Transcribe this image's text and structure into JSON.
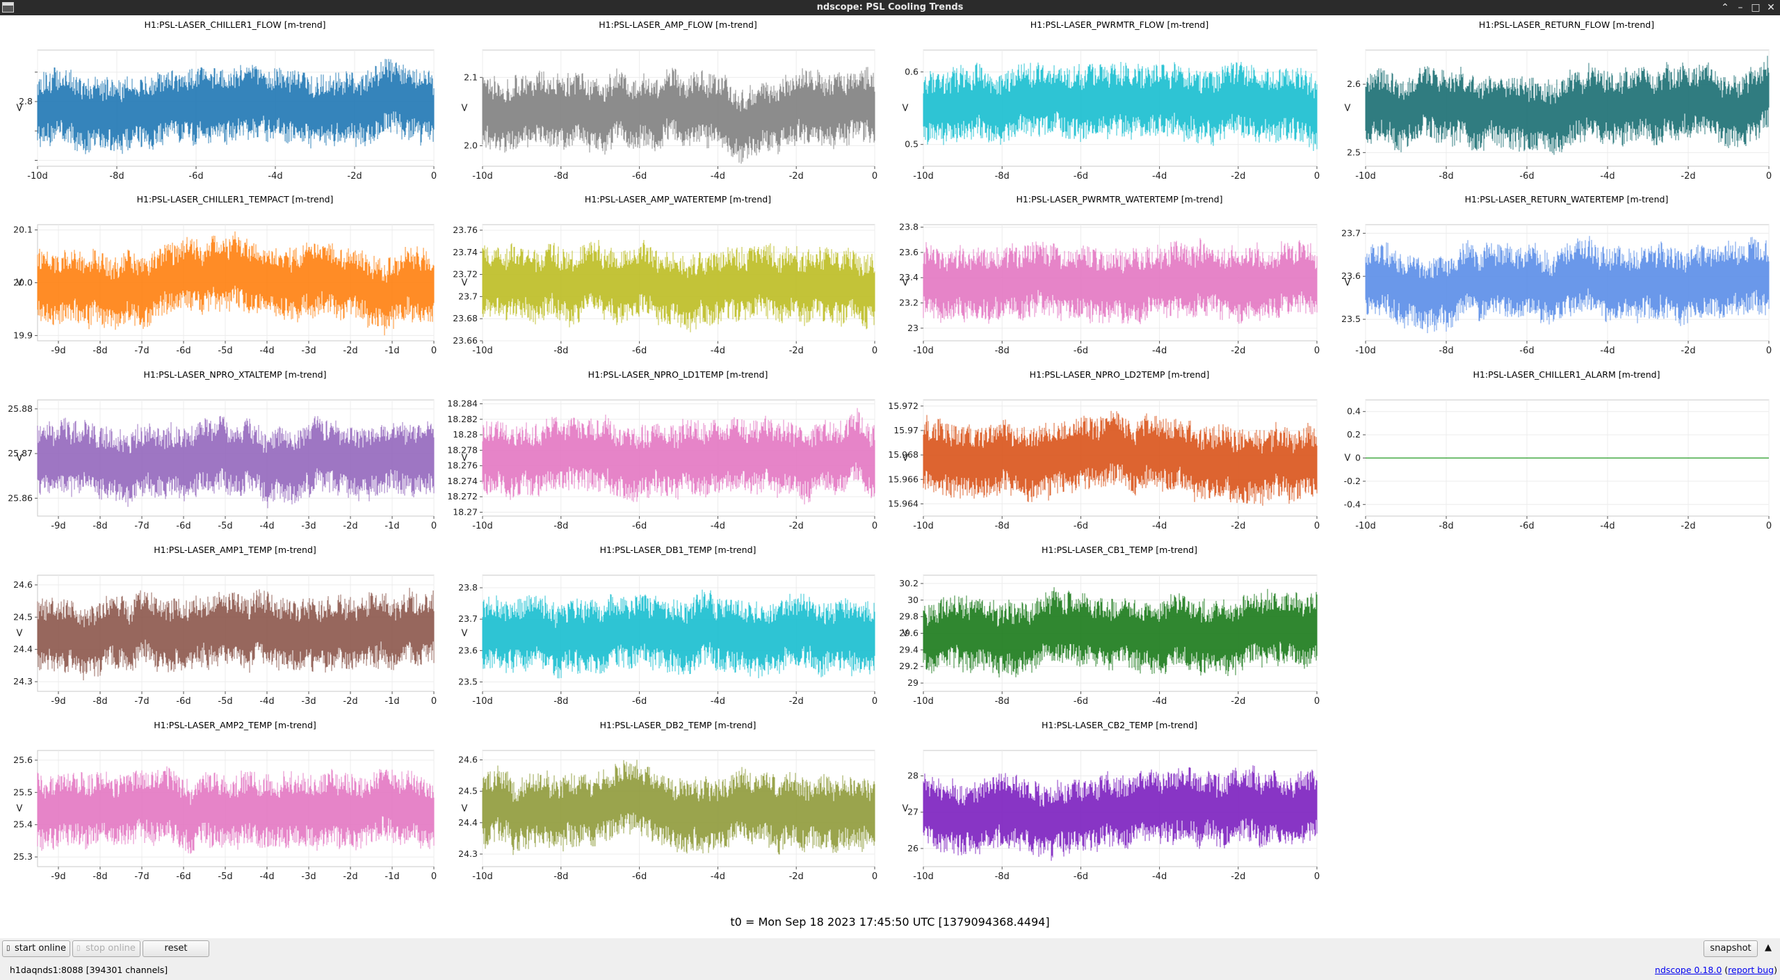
{
  "window": {
    "title": "ndscope: PSL Cooling Trends",
    "buttons": {
      "collapse": "⌃",
      "minimize": "–",
      "maximize": "□",
      "close": "✕"
    }
  },
  "plots": [
    {
      "title": "H1:PSL-LASER_CHILLER1_FLOW [m-trend]",
      "color": "#1f77b4",
      "ylabel": "V",
      "yticks": [
        {
          "v": 3,
          "label": ""
        },
        {
          "v": 2.8,
          "label": "2.8"
        },
        {
          "v": 2.6,
          "label": ""
        },
        {
          "v": 2.4,
          "label": ""
        }
      ],
      "ylim": [
        2.36,
        3.15
      ],
      "xticks": [
        {
          "v": -10,
          "label": "-10d"
        },
        {
          "v": -8,
          "label": "-8d"
        },
        {
          "v": -6,
          "label": "-6d"
        },
        {
          "v": -4,
          "label": "-4d"
        },
        {
          "v": -2,
          "label": "-2d"
        },
        {
          "v": 0,
          "label": "0"
        }
      ],
      "xlim": [
        -10,
        0
      ]
    },
    {
      "title": "H1:PSL-LASER_AMP_FLOW [m-trend]",
      "color": "#7f7f7f",
      "ylabel": "V",
      "yticks": [
        {
          "v": 2.1,
          "label": "2.1"
        },
        {
          "v": 2.0,
          "label": "2.0"
        }
      ],
      "ylim": [
        1.97,
        2.14
      ],
      "xticks": [
        {
          "v": -10,
          "label": "-10d"
        },
        {
          "v": -8,
          "label": "-8d"
        },
        {
          "v": -6,
          "label": "-6d"
        },
        {
          "v": -4,
          "label": "-4d"
        },
        {
          "v": -2,
          "label": "-2d"
        },
        {
          "v": 0,
          "label": "0"
        }
      ],
      "xlim": [
        -10,
        0
      ]
    },
    {
      "title": "H1:PSL-LASER_PWRMTR_FLOW [m-trend]",
      "color": "#17becf",
      "ylabel": "V",
      "yticks": [
        {
          "v": 0.6,
          "label": "0.6"
        },
        {
          "v": 0.5,
          "label": "0.5"
        }
      ],
      "ylim": [
        0.47,
        0.63
      ],
      "xticks": [
        {
          "v": -10,
          "label": "-10d"
        },
        {
          "v": -8,
          "label": "-8d"
        },
        {
          "v": -6,
          "label": "-6d"
        },
        {
          "v": -4,
          "label": "-4d"
        },
        {
          "v": -2,
          "label": "-2d"
        },
        {
          "v": 0,
          "label": "0"
        }
      ],
      "xlim": [
        -10,
        0
      ]
    },
    {
      "title": "H1:PSL-LASER_RETURN_FLOW [m-trend]",
      "color": "#1a6e72",
      "ylabel": "V",
      "yticks": [
        {
          "v": 2.6,
          "label": "2.6"
        },
        {
          "v": 2.5,
          "label": "2.5"
        }
      ],
      "ylim": [
        2.48,
        2.65
      ],
      "xticks": [
        {
          "v": -10,
          "label": "-10d"
        },
        {
          "v": -8,
          "label": "-8d"
        },
        {
          "v": -6,
          "label": "-6d"
        },
        {
          "v": -4,
          "label": "-4d"
        },
        {
          "v": -2,
          "label": "-2d"
        },
        {
          "v": 0,
          "label": "0"
        }
      ],
      "xlim": [
        -10,
        0
      ]
    },
    {
      "title": "H1:PSL-LASER_CHILLER1_TEMPACT [m-trend]",
      "color": "#ff7f0e",
      "ylabel": "V",
      "yticks": [
        {
          "v": 20.1,
          "label": "20.1"
        },
        {
          "v": 20.0,
          "label": "20.0"
        },
        {
          "v": 19.9,
          "label": "19.9"
        }
      ],
      "ylim": [
        19.89,
        20.11
      ],
      "xticks": [
        {
          "v": -9,
          "label": "-9d"
        },
        {
          "v": -8,
          "label": "-8d"
        },
        {
          "v": -7,
          "label": "-7d"
        },
        {
          "v": -6,
          "label": "-6d"
        },
        {
          "v": -5,
          "label": "-5d"
        },
        {
          "v": -4,
          "label": "-4d"
        },
        {
          "v": -3,
          "label": "-3d"
        },
        {
          "v": -2,
          "label": "-2d"
        },
        {
          "v": -1,
          "label": "-1d"
        },
        {
          "v": 0,
          "label": "0"
        }
      ],
      "xlim": [
        -9.5,
        0
      ]
    },
    {
      "title": "H1:PSL-LASER_AMP_WATERTEMP [m-trend]",
      "color": "#bcbd22",
      "ylabel": "V",
      "yticks": [
        {
          "v": 23.76,
          "label": "23.76"
        },
        {
          "v": 23.74,
          "label": "23.74"
        },
        {
          "v": 23.72,
          "label": "23.72"
        },
        {
          "v": 23.7,
          "label": "23.7"
        },
        {
          "v": 23.68,
          "label": "23.68"
        },
        {
          "v": 23.66,
          "label": "23.66"
        }
      ],
      "ylim": [
        23.66,
        23.765
      ],
      "xticks": [
        {
          "v": -10,
          "label": "-10d"
        },
        {
          "v": -8,
          "label": "-8d"
        },
        {
          "v": -6,
          "label": "-6d"
        },
        {
          "v": -4,
          "label": "-4d"
        },
        {
          "v": -2,
          "label": "-2d"
        },
        {
          "v": 0,
          "label": "0"
        }
      ],
      "xlim": [
        -10,
        0
      ]
    },
    {
      "title": "H1:PSL-LASER_PWRMTR_WATERTEMP [m-trend]",
      "color": "#e377c2",
      "ylabel": "V",
      "yticks": [
        {
          "v": 23.8,
          "label": "23.8"
        },
        {
          "v": 23.6,
          "label": "23.6"
        },
        {
          "v": 23.4,
          "label": "23.4"
        },
        {
          "v": 23.2,
          "label": "23.2"
        },
        {
          "v": 23,
          "label": "23"
        }
      ],
      "ylim": [
        22.9,
        23.82
      ],
      "xticks": [
        {
          "v": -10,
          "label": "-10d"
        },
        {
          "v": -8,
          "label": "-8d"
        },
        {
          "v": -6,
          "label": "-6d"
        },
        {
          "v": -4,
          "label": "-4d"
        },
        {
          "v": -2,
          "label": "-2d"
        },
        {
          "v": 0,
          "label": "0"
        }
      ],
      "xlim": [
        -10,
        0
      ]
    },
    {
      "title": "H1:PSL-LASER_RETURN_WATERTEMP [m-trend]",
      "color": "#5a8de8",
      "ylabel": "V",
      "yticks": [
        {
          "v": 23.7,
          "label": "23.7"
        },
        {
          "v": 23.6,
          "label": "23.6"
        },
        {
          "v": 23.5,
          "label": "23.5"
        }
      ],
      "ylim": [
        23.45,
        23.72
      ],
      "xticks": [
        {
          "v": -10,
          "label": "-10d"
        },
        {
          "v": -8,
          "label": "-8d"
        },
        {
          "v": -6,
          "label": "-6d"
        },
        {
          "v": -4,
          "label": "-4d"
        },
        {
          "v": -2,
          "label": "-2d"
        },
        {
          "v": 0,
          "label": "0"
        }
      ],
      "xlim": [
        -10,
        0
      ]
    },
    {
      "title": "H1:PSL-LASER_NPRO_XTALTEMP [m-trend]",
      "color": "#9467bd",
      "ylabel": "V",
      "yticks": [
        {
          "v": 25.88,
          "label": "25.88"
        },
        {
          "v": 25.87,
          "label": "25.87"
        },
        {
          "v": 25.86,
          "label": "25.86"
        }
      ],
      "ylim": [
        25.856,
        25.882
      ],
      "xticks": [
        {
          "v": -9,
          "label": "-9d"
        },
        {
          "v": -8,
          "label": "-8d"
        },
        {
          "v": -7,
          "label": "-7d"
        },
        {
          "v": -6,
          "label": "-6d"
        },
        {
          "v": -5,
          "label": "-5d"
        },
        {
          "v": -4,
          "label": "-4d"
        },
        {
          "v": -3,
          "label": "-3d"
        },
        {
          "v": -2,
          "label": "-2d"
        },
        {
          "v": -1,
          "label": "-1d"
        },
        {
          "v": 0,
          "label": "0"
        }
      ],
      "xlim": [
        -9.5,
        0
      ]
    },
    {
      "title": "H1:PSL-LASER_NPRO_LD1TEMP [m-trend]",
      "color": "#e377c2",
      "ylabel": "V",
      "yticks": [
        {
          "v": 18.284,
          "label": "18.284"
        },
        {
          "v": 18.282,
          "label": "18.282"
        },
        {
          "v": 18.28,
          "label": "18.28"
        },
        {
          "v": 18.278,
          "label": "18.278"
        },
        {
          "v": 18.276,
          "label": "18.276"
        },
        {
          "v": 18.274,
          "label": "18.274"
        },
        {
          "v": 18.272,
          "label": "18.272"
        },
        {
          "v": 18.27,
          "label": "18.27"
        }
      ],
      "ylim": [
        18.2695,
        18.2845
      ],
      "xticks": [
        {
          "v": -10,
          "label": "-10d"
        },
        {
          "v": -8,
          "label": "-8d"
        },
        {
          "v": -6,
          "label": "-6d"
        },
        {
          "v": -4,
          "label": "-4d"
        },
        {
          "v": -2,
          "label": "-2d"
        },
        {
          "v": 0,
          "label": "0"
        }
      ],
      "xlim": [
        -10,
        0
      ]
    },
    {
      "title": "H1:PSL-LASER_NPRO_LD2TEMP [m-trend]",
      "color": "#d95319",
      "ylabel": "V",
      "yticks": [
        {
          "v": 15.972,
          "label": "15.972"
        },
        {
          "v": 15.97,
          "label": "15.97"
        },
        {
          "v": 15.968,
          "label": "15.968"
        },
        {
          "v": 15.966,
          "label": "15.966"
        },
        {
          "v": 15.964,
          "label": "15.964"
        }
      ],
      "ylim": [
        15.963,
        15.9725
      ],
      "xticks": [
        {
          "v": -10,
          "label": "-10d"
        },
        {
          "v": -8,
          "label": "-8d"
        },
        {
          "v": -6,
          "label": "-6d"
        },
        {
          "v": -4,
          "label": "-4d"
        },
        {
          "v": -2,
          "label": "-2d"
        },
        {
          "v": 0,
          "label": "0"
        }
      ],
      "xlim": [
        -10,
        0
      ]
    },
    {
      "title": "H1:PSL-LASER_CHILLER1_ALARM [m-trend]",
      "color": "#2ca02c",
      "ylabel": "V",
      "yticks": [
        {
          "v": 0.4,
          "label": "0.4"
        },
        {
          "v": 0.2,
          "label": "0.2"
        },
        {
          "v": 0,
          "label": "0"
        },
        {
          "v": -0.2,
          "label": "-0.2"
        },
        {
          "v": -0.4,
          "label": "-0.4"
        }
      ],
      "ylim": [
        -0.5,
        0.5
      ],
      "xticks": [
        {
          "v": -10,
          "label": "-10d"
        },
        {
          "v": -8,
          "label": "-8d"
        },
        {
          "v": -6,
          "label": "-6d"
        },
        {
          "v": -4,
          "label": "-4d"
        },
        {
          "v": -2,
          "label": "-2d"
        },
        {
          "v": 0,
          "label": "0"
        }
      ],
      "xlim": [
        -10,
        0
      ]
    },
    {
      "title": "H1:PSL-LASER_AMP1_TEMP [m-trend]",
      "color": "#8c564b",
      "ylabel": "V",
      "yticks": [
        {
          "v": 24.6,
          "label": "24.6"
        },
        {
          "v": 24.5,
          "label": "24.5"
        },
        {
          "v": 24.4,
          "label": "24.4"
        },
        {
          "v": 24.3,
          "label": "24.3"
        }
      ],
      "ylim": [
        24.27,
        24.63
      ],
      "xticks": [
        {
          "v": -9,
          "label": "-9d"
        },
        {
          "v": -8,
          "label": "-8d"
        },
        {
          "v": -7,
          "label": "-7d"
        },
        {
          "v": -6,
          "label": "-6d"
        },
        {
          "v": -5,
          "label": "-5d"
        },
        {
          "v": -4,
          "label": "-4d"
        },
        {
          "v": -3,
          "label": "-3d"
        },
        {
          "v": -2,
          "label": "-2d"
        },
        {
          "v": -1,
          "label": "-1d"
        },
        {
          "v": 0,
          "label": "0"
        }
      ],
      "xlim": [
        -9.5,
        0
      ]
    },
    {
      "title": "H1:PSL-LASER_DB1_TEMP [m-trend]",
      "color": "#17becf",
      "ylabel": "V",
      "yticks": [
        {
          "v": 23.8,
          "label": "23.8"
        },
        {
          "v": 23.7,
          "label": "23.7"
        },
        {
          "v": 23.6,
          "label": "23.6"
        },
        {
          "v": 23.5,
          "label": "23.5"
        }
      ],
      "ylim": [
        23.47,
        23.84
      ],
      "xticks": [
        {
          "v": -10,
          "label": "-10d"
        },
        {
          "v": -8,
          "label": "-8d"
        },
        {
          "v": -6,
          "label": "-6d"
        },
        {
          "v": -4,
          "label": "-4d"
        },
        {
          "v": -2,
          "label": "-2d"
        },
        {
          "v": 0,
          "label": "0"
        }
      ],
      "xlim": [
        -10,
        0
      ]
    },
    {
      "title": "H1:PSL-LASER_CB1_TEMP [m-trend]",
      "color": "#1a7a1a",
      "ylabel": "V",
      "yticks": [
        {
          "v": 30.2,
          "label": "30.2"
        },
        {
          "v": 30,
          "label": "30"
        },
        {
          "v": 29.8,
          "label": "29.8"
        },
        {
          "v": 29.6,
          "label": "29.6"
        },
        {
          "v": 29.4,
          "label": "29.4"
        },
        {
          "v": 29.2,
          "label": "29.2"
        },
        {
          "v": 29,
          "label": "29"
        }
      ],
      "ylim": [
        28.9,
        30.3
      ],
      "xticks": [
        {
          "v": -10,
          "label": "-10d"
        },
        {
          "v": -8,
          "label": "-8d"
        },
        {
          "v": -6,
          "label": "-6d"
        },
        {
          "v": -4,
          "label": "-4d"
        },
        {
          "v": -2,
          "label": "-2d"
        },
        {
          "v": 0,
          "label": "0"
        }
      ],
      "xlim": [
        -10,
        0
      ]
    },
    null,
    {
      "title": "H1:PSL-LASER_AMP2_TEMP [m-trend]",
      "color": "#e377c2",
      "ylabel": "V",
      "yticks": [
        {
          "v": 25.6,
          "label": "25.6"
        },
        {
          "v": 25.5,
          "label": "25.5"
        },
        {
          "v": 25.4,
          "label": "25.4"
        },
        {
          "v": 25.3,
          "label": "25.3"
        }
      ],
      "ylim": [
        25.27,
        25.63
      ],
      "xticks": [
        {
          "v": -9,
          "label": "-9d"
        },
        {
          "v": -8,
          "label": "-8d"
        },
        {
          "v": -7,
          "label": "-7d"
        },
        {
          "v": -6,
          "label": "-6d"
        },
        {
          "v": -5,
          "label": "-5d"
        },
        {
          "v": -4,
          "label": "-4d"
        },
        {
          "v": -3,
          "label": "-3d"
        },
        {
          "v": -2,
          "label": "-2d"
        },
        {
          "v": -1,
          "label": "-1d"
        },
        {
          "v": 0,
          "label": "0"
        }
      ],
      "xlim": [
        -9.5,
        0
      ]
    },
    {
      "title": "H1:PSL-LASER_DB2_TEMP [m-trend]",
      "color": "#8f9a3a",
      "ylabel": "V",
      "yticks": [
        {
          "v": 24.6,
          "label": "24.6"
        },
        {
          "v": 24.5,
          "label": "24.5"
        },
        {
          "v": 24.4,
          "label": "24.4"
        },
        {
          "v": 24.3,
          "label": "24.3"
        }
      ],
      "ylim": [
        24.26,
        24.63
      ],
      "xticks": [
        {
          "v": -10,
          "label": "-10d"
        },
        {
          "v": -8,
          "label": "-8d"
        },
        {
          "v": -6,
          "label": "-6d"
        },
        {
          "v": -4,
          "label": "-4d"
        },
        {
          "v": -2,
          "label": "-2d"
        },
        {
          "v": 0,
          "label": "0"
        }
      ],
      "xlim": [
        -10,
        0
      ]
    },
    {
      "title": "H1:PSL-LASER_CB2_TEMP [m-trend]",
      "color": "#7b1fbf",
      "ylabel": "V",
      "yticks": [
        {
          "v": 28,
          "label": "28"
        },
        {
          "v": 27,
          "label": "27"
        },
        {
          "v": 26,
          "label": "26"
        }
      ],
      "ylim": [
        25.5,
        28.7
      ],
      "xticks": [
        {
          "v": -10,
          "label": "-10d"
        },
        {
          "v": -8,
          "label": "-8d"
        },
        {
          "v": -6,
          "label": "-6d"
        },
        {
          "v": -4,
          "label": "-4d"
        },
        {
          "v": -2,
          "label": "-2d"
        },
        {
          "v": 0,
          "label": "0"
        }
      ],
      "xlim": [
        -10,
        0
      ]
    },
    null
  ],
  "t0_label": "t0 = Mon Sep 18 2023 17:45:50 UTC [1379094368.4494]",
  "toolbar": {
    "start_online": "start online",
    "stop_online": "stop online",
    "reset": "reset",
    "snapshot": "snapshot",
    "menu_arrow": "▲"
  },
  "status": {
    "server": "h1daqnds1:8088  [394301 channels]",
    "version": "ndscope 0.18.0",
    "report_bug": "report bug"
  }
}
